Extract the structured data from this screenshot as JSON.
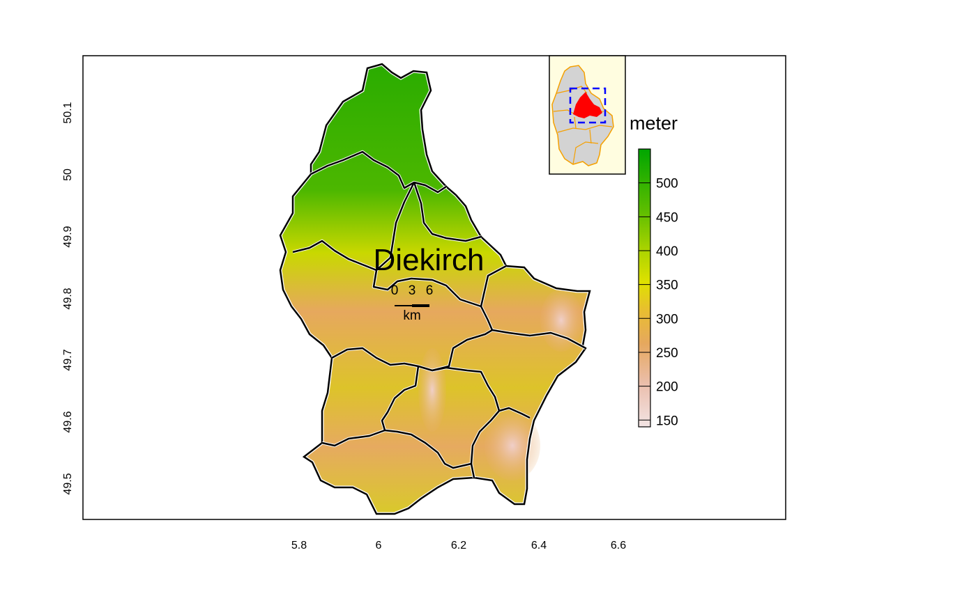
{
  "map": {
    "legend_title": "meter",
    "place_label": "Diekirch",
    "scale_bar": {
      "ticks": [
        "0",
        "3",
        "6"
      ],
      "unit": "km"
    },
    "x_axis": {
      "ticks": [
        "5.8",
        "6",
        "6.2",
        "6.4",
        "6.6"
      ]
    },
    "y_axis": {
      "ticks": [
        "49.5",
        "49.6",
        "49.7",
        "49.8",
        "49.9",
        "50",
        "50.1"
      ]
    },
    "legend": {
      "ticks": [
        "150",
        "200",
        "250",
        "300",
        "350",
        "400",
        "450",
        "500"
      ],
      "range": [
        140,
        550
      ],
      "colors": [
        "#f2f2f2",
        "#ebb9a8",
        "#e6a85b",
        "#e8c320",
        "#dfe100",
        "#9ccf00",
        "#4fb800",
        "#00a600"
      ]
    },
    "inset": {
      "background": "#fffde0",
      "highlight": "#ff0000",
      "box_color": "#0000ff",
      "outline": "#f5a000"
    }
  }
}
